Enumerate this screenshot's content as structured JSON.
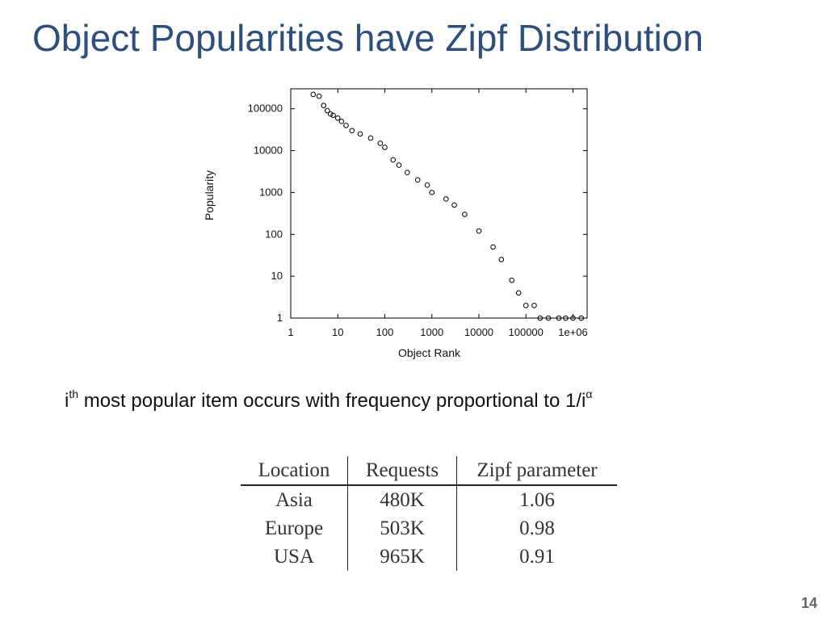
{
  "slide": {
    "title": "Object Popularities have Zipf Distribution",
    "caption_prefix": "i",
    "caption_sup": "th",
    "caption_main": " most popular item occurs with frequency proportional to 1/i",
    "caption_alpha": "α",
    "page_number": "14"
  },
  "table": {
    "headers": [
      "Location",
      "Requests",
      "Zipf parameter"
    ],
    "rows": [
      [
        "Asia",
        "480K",
        "1.06"
      ],
      [
        "Europe",
        "503K",
        "0.98"
      ],
      [
        "USA",
        "965K",
        "0.91"
      ]
    ]
  },
  "chart_data": {
    "type": "scatter",
    "title": "",
    "xlabel": "Object Rank",
    "ylabel": "Popularity",
    "xscale": "log",
    "yscale": "log",
    "xlim": [
      1,
      2000000
    ],
    "ylim": [
      1,
      300000
    ],
    "x_ticks": [
      1,
      10,
      100,
      1000,
      10000,
      100000,
      1000000
    ],
    "x_tick_labels": [
      "1",
      "10",
      "100",
      "1000",
      "10000",
      "100000",
      "1e+06"
    ],
    "y_ticks": [
      1,
      10,
      100,
      1000,
      10000,
      100000
    ],
    "y_tick_labels": [
      "1",
      "10",
      "100",
      "1000",
      "10000",
      "100000"
    ],
    "grid": false,
    "legend": "none",
    "marker": "open-circle",
    "color": "#000000",
    "series": [
      {
        "x": [
          3,
          4,
          5,
          6,
          7,
          8,
          10,
          12,
          15,
          20,
          30,
          50,
          80,
          100,
          150,
          200,
          300,
          500,
          800,
          1000,
          2000,
          3000,
          5000,
          10000,
          20000,
          30000,
          50000,
          70000,
          100000,
          150000,
          200000,
          300000,
          500000,
          700000,
          1000000,
          1500000
        ],
        "y": [
          220000,
          200000,
          120000,
          90000,
          75000,
          70000,
          60000,
          50000,
          40000,
          30000,
          25000,
          20000,
          15000,
          12000,
          6000,
          4500,
          3000,
          2000,
          1500,
          1000,
          700,
          500,
          300,
          120,
          50,
          25,
          8,
          4,
          2,
          2,
          1,
          1,
          1,
          1,
          1,
          1
        ]
      }
    ]
  }
}
